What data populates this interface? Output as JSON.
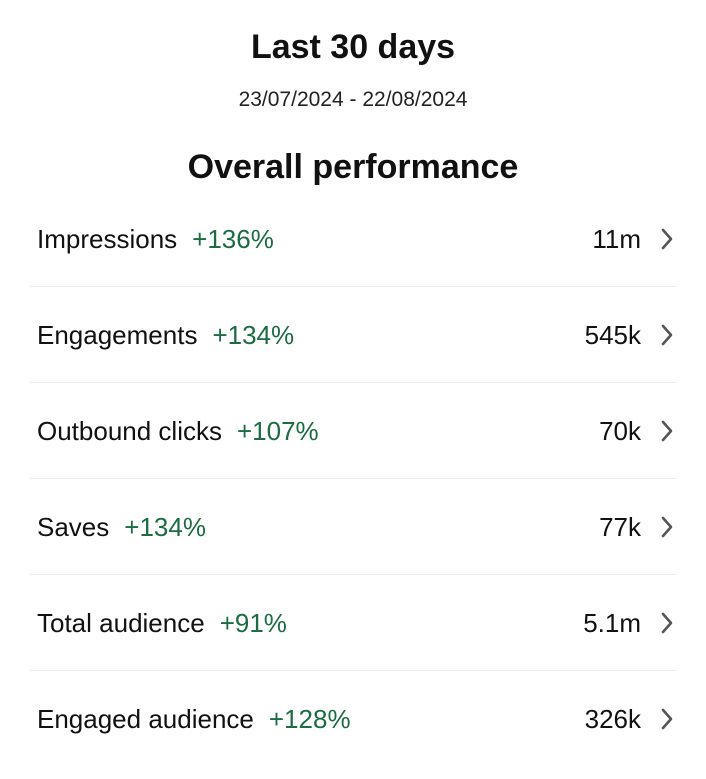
{
  "header": {
    "title": "Last 30 days",
    "date_range": "23/07/2024 - 22/08/2024"
  },
  "section": {
    "title": "Overall performance"
  },
  "metrics": [
    {
      "label": "Impressions",
      "change": "+136%",
      "value": "11m"
    },
    {
      "label": "Engagements",
      "change": "+134%",
      "value": "545k"
    },
    {
      "label": "Outbound clicks",
      "change": "+107%",
      "value": "70k"
    },
    {
      "label": "Saves",
      "change": "+134%",
      "value": "77k"
    },
    {
      "label": "Total audience",
      "change": "+91%",
      "value": "5.1m"
    },
    {
      "label": "Engaged audience",
      "change": "+128%",
      "value": "326k"
    }
  ],
  "colors": {
    "positive_change": "#1c6b42",
    "text": "#111111",
    "divider": "#ececec",
    "chevron": "#555555"
  },
  "icons": {
    "row_chevron": "chevron-right-icon"
  }
}
